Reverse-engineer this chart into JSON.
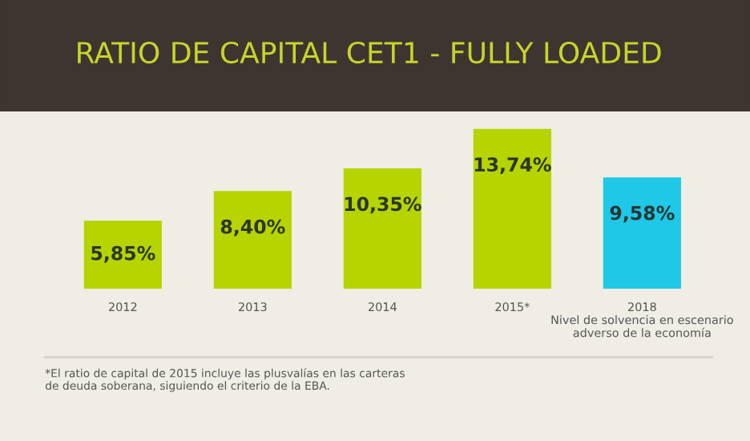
{
  "chart_data": {
    "type": "bar",
    "title": "RATIO DE CAPITAL CET1 - FULLY LOADED",
    "categories": [
      "2012",
      "2013",
      "2014",
      "2015*",
      "2018\nNivel de solvencia en escenario\nadverso de la economía"
    ],
    "values": [
      5.85,
      8.4,
      10.35,
      13.74,
      9.58
    ],
    "value_labels": [
      "5,85%",
      "8,40%",
      "10,35%",
      "13,74%",
      "9,58%"
    ],
    "colors": [
      "#b5d400",
      "#b5d400",
      "#b5d400",
      "#b5d400",
      "#1ec8e6"
    ],
    "annotations": [
      "*El ratio de capital de 2015 incluye las plusvalías en las carteras\nde deuda soberana, siguiendo el criterio de la EBA."
    ]
  }
}
